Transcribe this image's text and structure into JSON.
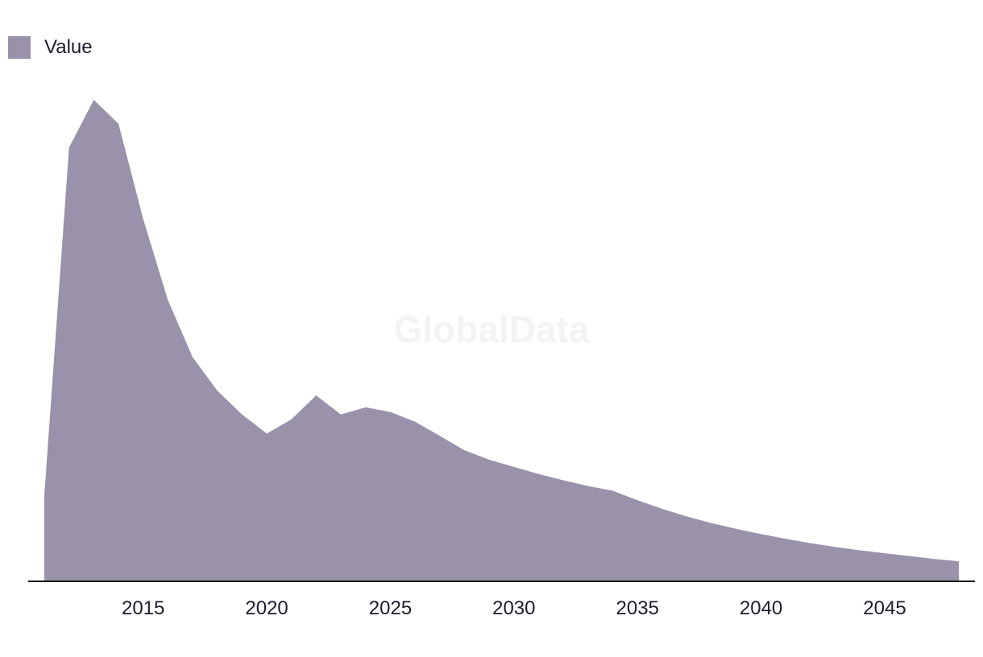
{
  "watermark": "GlobalData",
  "colors": {
    "area": "#9a91aa",
    "axis": "#111111",
    "text": "#1f1a2e"
  },
  "chart_data": {
    "type": "area",
    "legend": {
      "position": "top-left",
      "entries": [
        "Value"
      ]
    },
    "grid": false,
    "x_ticks": [
      2015,
      2020,
      2025,
      2030,
      2035,
      2040,
      2045
    ],
    "xlim": [
      2011,
      2048
    ],
    "ylim": [
      0,
      100
    ],
    "series": [
      {
        "name": "Value",
        "x": [
          2011,
          2012,
          2013,
          2014,
          2015,
          2016,
          2017,
          2018,
          2019,
          2020,
          2021,
          2022,
          2023,
          2024,
          2025,
          2026,
          2027,
          2028,
          2029,
          2030,
          2031,
          2032,
          2033,
          2034,
          2035,
          2036,
          2037,
          2038,
          2039,
          2040,
          2041,
          2042,
          2043,
          2044,
          2045,
          2046,
          2047,
          2048
        ],
        "values": [
          18,
          91,
          101,
          96,
          76,
          59,
          47,
          40,
          35,
          31,
          34,
          39,
          35,
          36.5,
          35.5,
          33.5,
          30.5,
          27.5,
          25.5,
          24,
          22.5,
          21.2,
          20,
          19,
          17,
          15.2,
          13.6,
          12.2,
          11,
          9.9,
          8.9,
          8,
          7.2,
          6.5,
          5.9,
          5.3,
          4.7,
          4.2
        ]
      }
    ]
  }
}
